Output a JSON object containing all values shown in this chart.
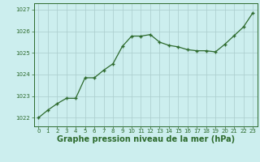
{
  "x": [
    0,
    1,
    2,
    3,
    4,
    5,
    6,
    7,
    8,
    9,
    10,
    11,
    12,
    13,
    14,
    15,
    16,
    17,
    18,
    19,
    20,
    21,
    22,
    23
  ],
  "y": [
    1022.0,
    1022.35,
    1022.65,
    1022.9,
    1022.9,
    1023.85,
    1023.85,
    1024.2,
    1024.5,
    1025.3,
    1025.78,
    1025.78,
    1025.85,
    1025.5,
    1025.35,
    1025.28,
    1025.15,
    1025.1,
    1025.1,
    1025.05,
    1025.4,
    1025.8,
    1026.2,
    1026.85
  ],
  "line_color": "#2d6a2d",
  "marker_color": "#2d6a2d",
  "bg_color": "#cceeee",
  "grid_color": "#aacccc",
  "label_color": "#2d6a2d",
  "xlabel": "Graphe pression niveau de la mer (hPa)",
  "ylim": [
    1021.6,
    1027.3
  ],
  "yticks": [
    1022,
    1023,
    1024,
    1025,
    1026,
    1027
  ],
  "xtick_labels": [
    "0",
    "1",
    "2",
    "3",
    "4",
    "5",
    "6",
    "7",
    "8",
    "9",
    "10",
    "11",
    "12",
    "13",
    "14",
    "15",
    "16",
    "17",
    "18",
    "19",
    "20",
    "21",
    "22",
    "23"
  ],
  "tick_fontsize": 5.0,
  "xlabel_fontsize": 7.0
}
